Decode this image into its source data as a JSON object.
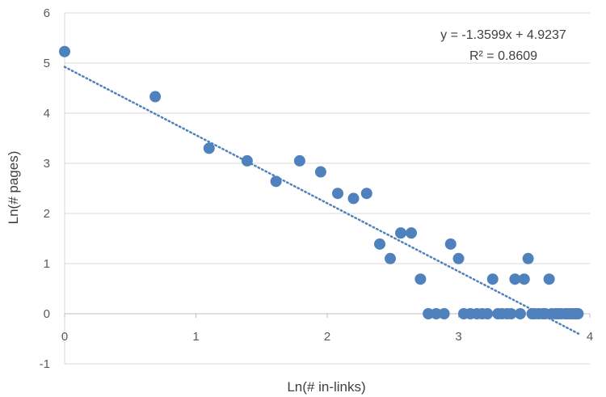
{
  "chart_data": {
    "type": "scatter",
    "title": "",
    "xlabel": "Ln(# in-links)",
    "ylabel": "Ln(# pages)",
    "xlim": [
      0,
      4
    ],
    "ylim": [
      -1,
      6
    ],
    "xticks": [
      "0",
      "1",
      "2",
      "3",
      "4"
    ],
    "yticks": [
      "-1",
      "0",
      "1",
      "2",
      "3",
      "4",
      "5",
      "6"
    ],
    "grid": "horizontal",
    "legend": "none",
    "marker_color": "#4F81BD",
    "trendline": {
      "slope": -1.3599,
      "intercept": 4.9237,
      "x_range": [
        0,
        3.92
      ],
      "equation": "y = -1.3599x + 4.9237",
      "r_squared": "R² = 0.8609",
      "style": "dotted"
    },
    "points": [
      [
        0,
        5.23
      ],
      [
        0.69,
        4.33
      ],
      [
        1.1,
        3.3
      ],
      [
        1.39,
        3.05
      ],
      [
        1.61,
        2.64
      ],
      [
        1.79,
        3.05
      ],
      [
        1.95,
        2.83
      ],
      [
        2.08,
        2.4
      ],
      [
        2.2,
        2.3
      ],
      [
        2.3,
        2.4
      ],
      [
        2.4,
        1.39
      ],
      [
        2.48,
        1.1
      ],
      [
        2.56,
        1.61
      ],
      [
        2.64,
        1.61
      ],
      [
        2.71,
        0.69
      ],
      [
        2.77,
        0
      ],
      [
        2.83,
        0
      ],
      [
        2.89,
        0
      ],
      [
        2.94,
        1.39
      ],
      [
        3.0,
        1.1
      ],
      [
        3.04,
        0
      ],
      [
        3.09,
        0
      ],
      [
        3.14,
        0
      ],
      [
        3.18,
        0
      ],
      [
        3.22,
        0
      ],
      [
        3.26,
        0.69
      ],
      [
        3.3,
        0
      ],
      [
        3.33,
        0
      ],
      [
        3.37,
        0
      ],
      [
        3.4,
        0
      ],
      [
        3.43,
        0.69
      ],
      [
        3.47,
        0
      ],
      [
        3.5,
        0.69
      ],
      [
        3.53,
        1.1
      ],
      [
        3.56,
        0
      ],
      [
        3.58,
        0
      ],
      [
        3.61,
        0
      ],
      [
        3.64,
        0
      ],
      [
        3.66,
        0
      ],
      [
        3.69,
        0.69
      ],
      [
        3.71,
        0
      ],
      [
        3.74,
        0
      ],
      [
        3.76,
        0
      ],
      [
        3.78,
        0
      ],
      [
        3.81,
        0
      ],
      [
        3.83,
        0
      ],
      [
        3.85,
        0
      ],
      [
        3.87,
        0
      ],
      [
        3.89,
        0
      ],
      [
        3.91,
        0
      ]
    ]
  }
}
